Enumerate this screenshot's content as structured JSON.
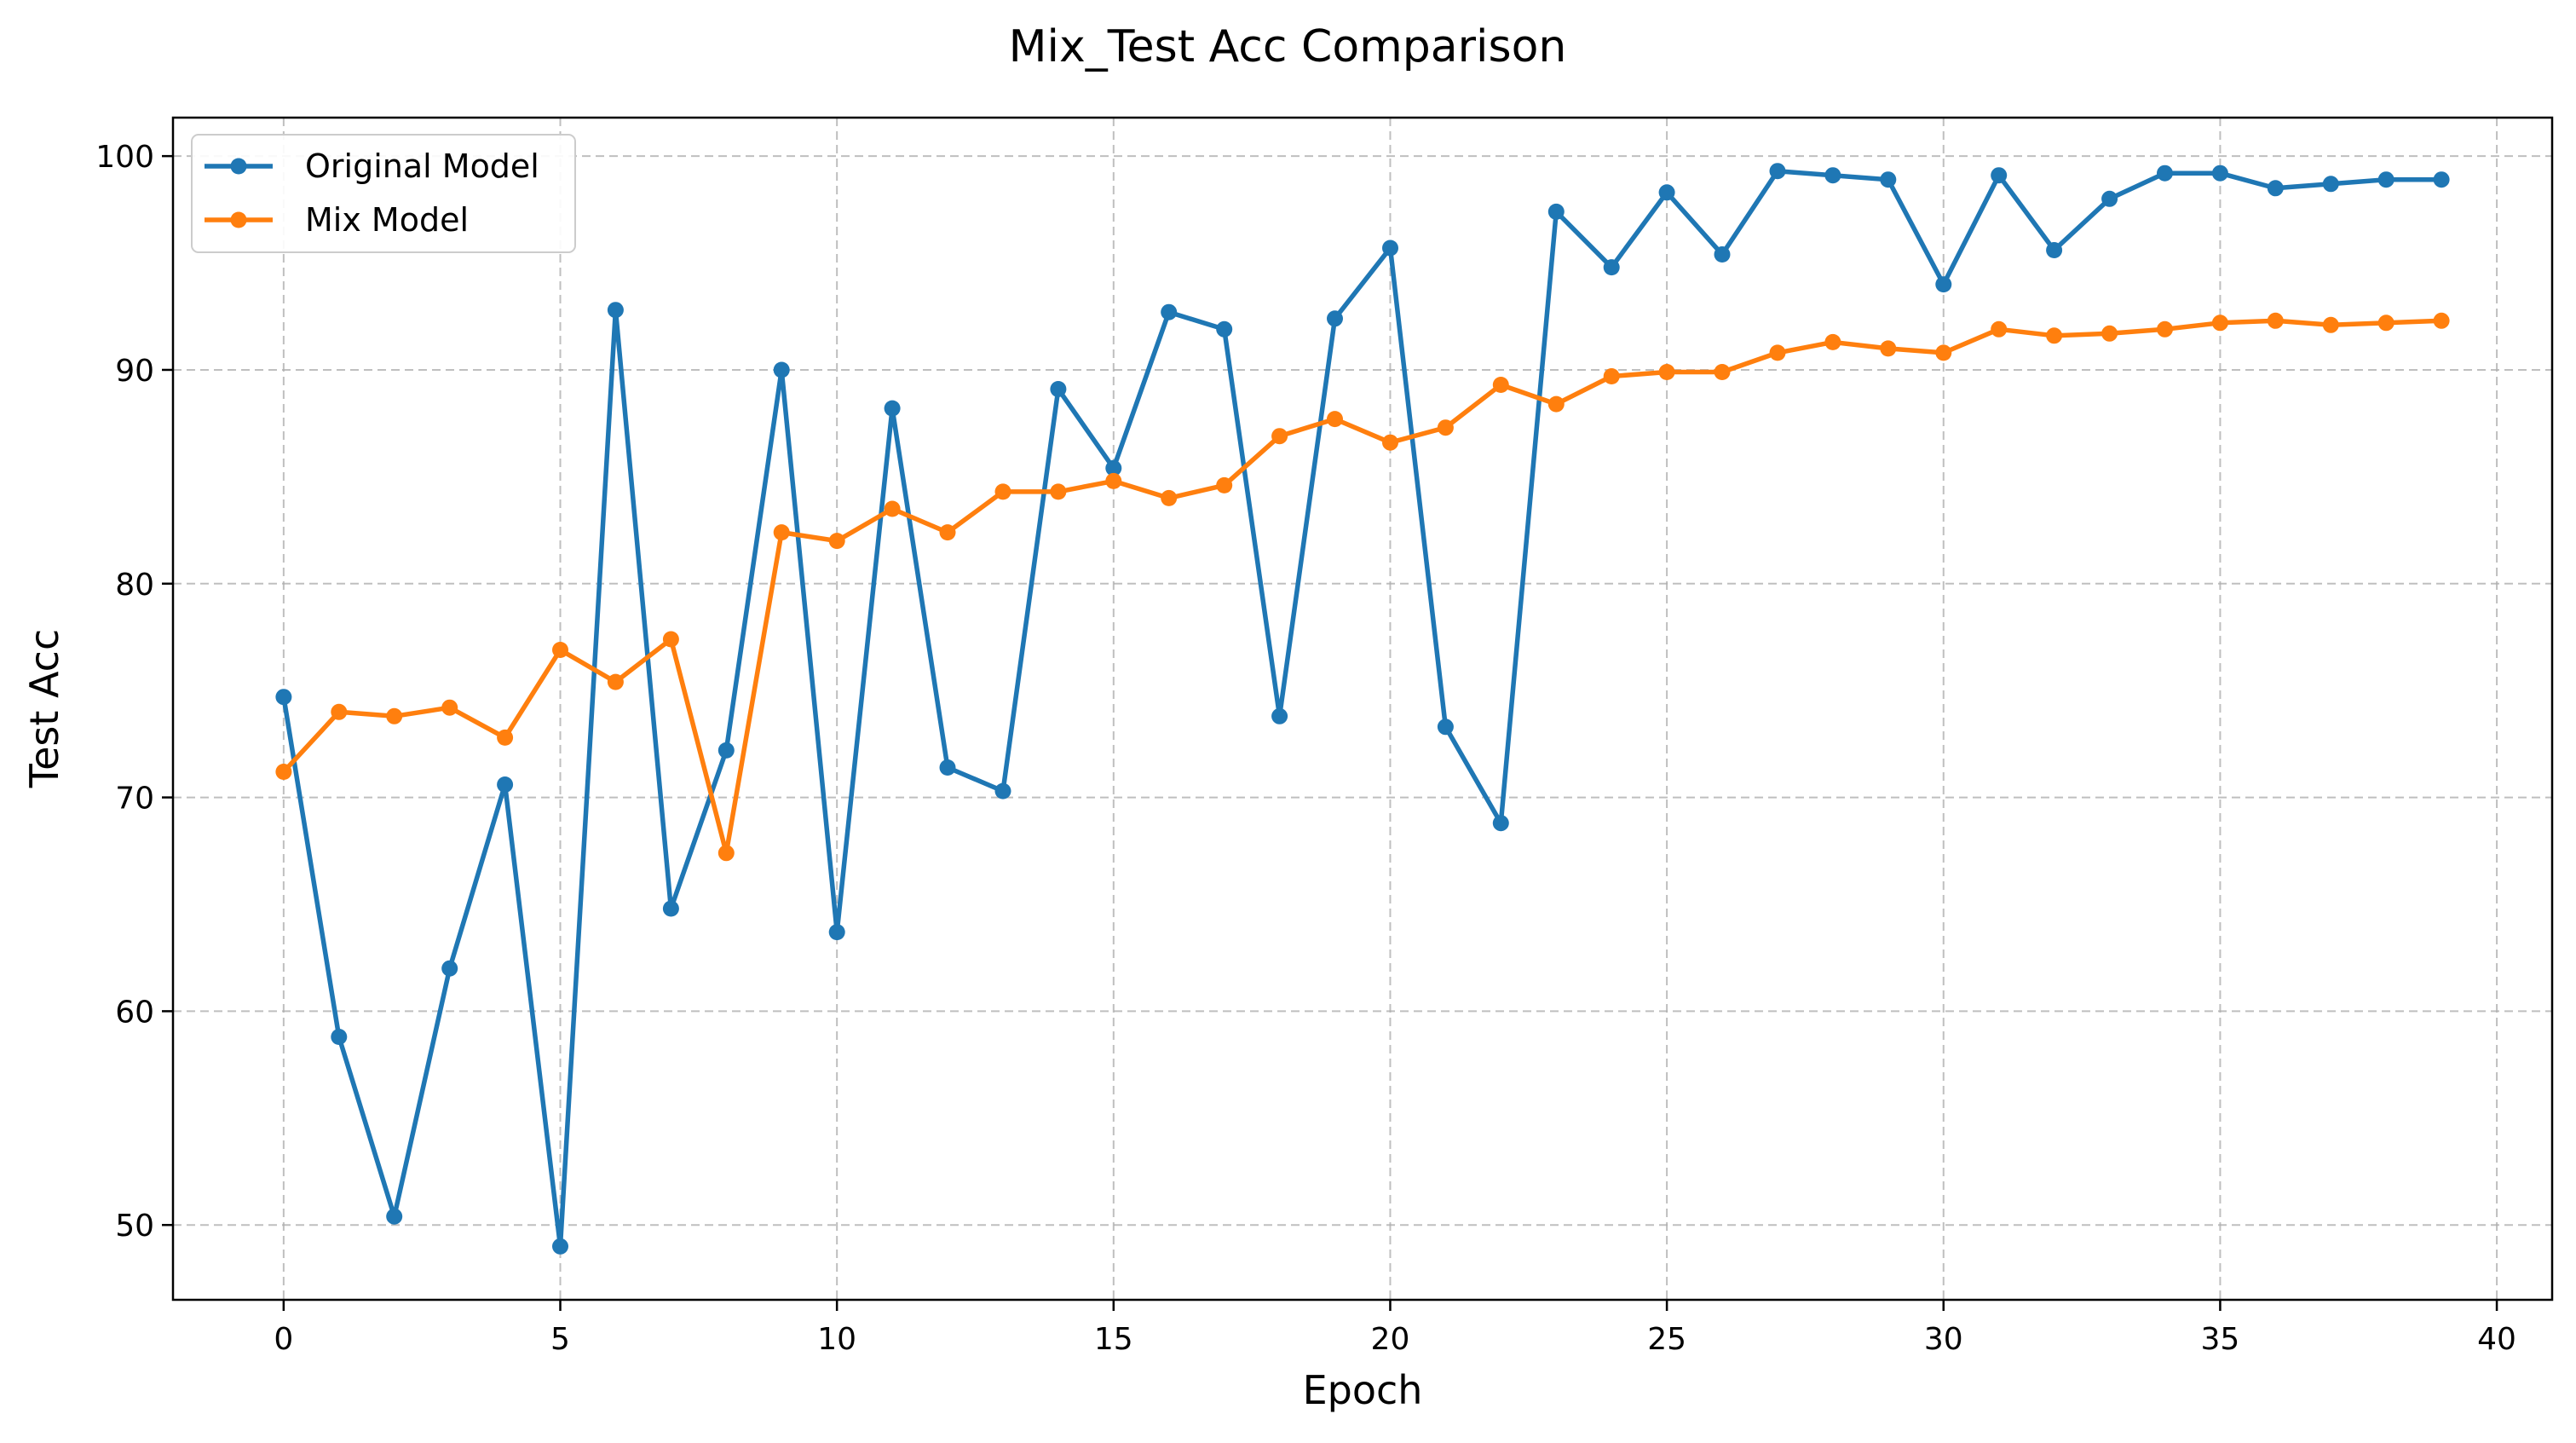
{
  "chart_data": {
    "type": "line",
    "title": "Mix_Test Acc Comparison",
    "xlabel": "Epoch",
    "ylabel": "Test Acc",
    "xlim": [
      -2,
      41
    ],
    "ylim": [
      46.5,
      101.8
    ],
    "xticks": [
      0,
      5,
      10,
      15,
      20,
      25,
      30,
      35,
      40
    ],
    "yticks": [
      50,
      60,
      70,
      80,
      90,
      100
    ],
    "grid": true,
    "legend_position": "top-left",
    "x": [
      0,
      1,
      2,
      3,
      4,
      5,
      6,
      7,
      8,
      9,
      10,
      11,
      12,
      13,
      14,
      15,
      16,
      17,
      18,
      19,
      20,
      21,
      22,
      23,
      24,
      25,
      26,
      27,
      28,
      29,
      30,
      31,
      32,
      33,
      34,
      35,
      36,
      37,
      38,
      39
    ],
    "series": [
      {
        "name": "Original Model",
        "color": "#1f77b4",
        "values": [
          74.7,
          58.8,
          50.4,
          62.0,
          70.6,
          49.0,
          92.8,
          64.8,
          72.2,
          90.0,
          63.7,
          88.2,
          71.4,
          70.3,
          89.1,
          85.4,
          92.7,
          91.9,
          73.8,
          92.4,
          95.7,
          73.3,
          68.8,
          97.4,
          94.8,
          98.3,
          95.4,
          99.3,
          99.1,
          98.9,
          94.0,
          99.1,
          95.6,
          98.0,
          99.2,
          99.2,
          98.5,
          98.7,
          98.9,
          98.9
        ]
      },
      {
        "name": "Mix Model",
        "color": "#ff7f0e",
        "values": [
          71.2,
          74.0,
          73.8,
          74.2,
          72.8,
          76.9,
          75.4,
          77.4,
          67.4,
          82.4,
          82.0,
          83.5,
          82.4,
          84.3,
          84.3,
          84.8,
          84.0,
          84.6,
          86.9,
          87.7,
          86.6,
          87.3,
          89.3,
          88.4,
          89.7,
          89.9,
          89.9,
          90.8,
          91.3,
          91.0,
          90.8,
          91.9,
          91.6,
          91.7,
          91.9,
          92.2,
          92.3,
          92.1,
          92.2,
          92.3
        ]
      }
    ]
  }
}
